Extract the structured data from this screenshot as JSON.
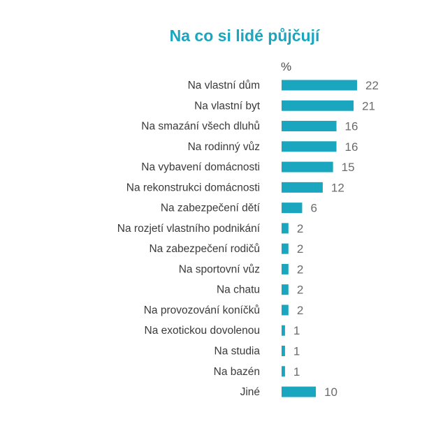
{
  "chart_data": {
    "type": "bar",
    "orientation": "horizontal",
    "title": "Na co si lidé půjčují",
    "unit": "%",
    "categories": [
      "Na vlastní dům",
      "Na vlastní byt",
      "Na smazání všech dluhů",
      "Na rodinný vůz",
      "Na vybavení domácnosti",
      "Na rekonstrukci domácnosti",
      "Na zabezpečení dětí",
      "Na rozjetí vlastního podnikání",
      "Na zabezpečení rodičů",
      "Na sportovní vůz",
      "Na chatu",
      "Na provozování koníčků",
      "Na exotickou dovolenou",
      "Na studia",
      "Na bazén",
      "Jiné"
    ],
    "values": [
      22,
      21,
      16,
      16,
      15,
      12,
      6,
      2,
      2,
      2,
      2,
      2,
      1,
      1,
      1,
      10
    ],
    "bar_color": "#1aa6bf",
    "title_color": "#1aa6bf",
    "label_color": "#3a3a3a",
    "value_color": "#6b6b6b",
    "grid": false,
    "legend": "none"
  }
}
